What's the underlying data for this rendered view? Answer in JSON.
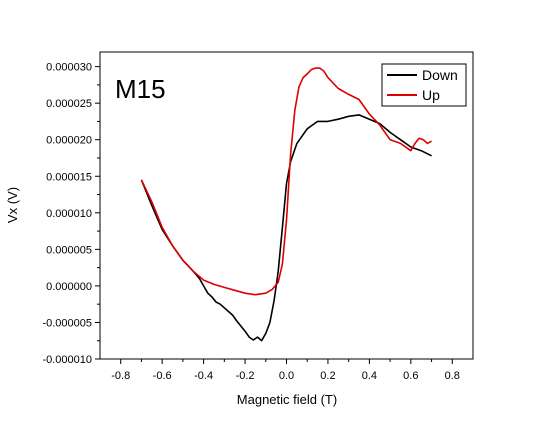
{
  "chart_data": {
    "type": "line",
    "title": "",
    "annotation": "M15",
    "xlabel": "Magnetic field (T)",
    "ylabel": "Vx (V)",
    "xlim": [
      -0.9,
      0.9
    ],
    "ylim": [
      -1e-05,
      3.2e-05
    ],
    "xticks": [
      -0.8,
      -0.6,
      -0.4,
      -0.2,
      0.0,
      0.2,
      0.4,
      0.6,
      0.8
    ],
    "xtick_labels": [
      "-0.8",
      "-0.6",
      "-0.4",
      "-0.2",
      "0.0",
      "0.2",
      "0.4",
      "0.6",
      "0.8"
    ],
    "yticks": [
      -1e-05,
      -5e-06,
      0,
      5e-06,
      1e-05,
      1.5e-05,
      2e-05,
      2.5e-05,
      3e-05
    ],
    "ytick_labels": [
      "-0.000010",
      "-0.000005",
      "0.000000",
      "0.000005",
      "0.000010",
      "0.000015",
      "0.000020",
      "0.000025",
      "0.000030"
    ],
    "grid": false,
    "legend_position": "top-right",
    "series": [
      {
        "name": "Down",
        "color": "#000000",
        "x": [
          -0.7,
          -0.65,
          -0.6,
          -0.55,
          -0.5,
          -0.45,
          -0.42,
          -0.4,
          -0.38,
          -0.36,
          -0.34,
          -0.32,
          -0.3,
          -0.28,
          -0.26,
          -0.24,
          -0.22,
          -0.2,
          -0.18,
          -0.16,
          -0.14,
          -0.12,
          -0.1,
          -0.08,
          -0.06,
          -0.04,
          -0.02,
          0.0,
          0.02,
          0.05,
          0.1,
          0.15,
          0.2,
          0.25,
          0.3,
          0.35,
          0.4,
          0.45,
          0.5,
          0.55,
          0.6,
          0.65,
          0.7
        ],
        "y": [
          1.45e-05,
          1.1e-05,
          7.7e-06,
          5.5e-06,
          3.5e-06,
          2e-06,
          1e-06,
          0.0,
          -1e-06,
          -1.5e-06,
          -2.2e-06,
          -2.5e-06,
          -3e-06,
          -3.5e-06,
          -4e-06,
          -4.8e-06,
          -5.5e-06,
          -6.2e-06,
          -7e-06,
          -7.4e-06,
          -7e-06,
          -7.5e-06,
          -6.5e-06,
          -5e-06,
          -2e-06,
          2e-06,
          8e-06,
          1.4e-05,
          1.7e-05,
          1.95e-05,
          2.15e-05,
          2.25e-05,
          2.25e-05,
          2.28e-05,
          2.32e-05,
          2.34e-05,
          2.28e-05,
          2.22e-05,
          2.1e-05,
          2e-05,
          1.9e-05,
          1.85e-05,
          1.78e-05
        ]
      },
      {
        "name": "Up",
        "color": "#dd0000",
        "x": [
          -0.7,
          -0.65,
          -0.6,
          -0.55,
          -0.5,
          -0.45,
          -0.4,
          -0.35,
          -0.3,
          -0.25,
          -0.2,
          -0.15,
          -0.1,
          -0.07,
          -0.04,
          -0.02,
          0.0,
          0.02,
          0.04,
          0.06,
          0.08,
          0.1,
          0.12,
          0.14,
          0.16,
          0.18,
          0.2,
          0.25,
          0.3,
          0.35,
          0.4,
          0.45,
          0.5,
          0.55,
          0.6,
          0.62,
          0.64,
          0.66,
          0.68,
          0.7
        ],
        "y": [
          1.45e-05,
          1.15e-05,
          8e-06,
          5.5e-06,
          3.5e-06,
          2e-06,
          8e-07,
          2e-07,
          -2e-07,
          -6e-07,
          -1e-06,
          -1.2e-06,
          -1e-06,
          -5e-07,
          5e-07,
          3e-06,
          9e-06,
          1.8e-05,
          2.4e-05,
          2.72e-05,
          2.85e-05,
          2.9e-05,
          2.96e-05,
          2.98e-05,
          2.98e-05,
          2.94e-05,
          2.85e-05,
          2.7e-05,
          2.62e-05,
          2.55e-05,
          2.35e-05,
          2.2e-05,
          2e-05,
          1.95e-05,
          1.85e-05,
          1.95e-05,
          2.02e-05,
          2e-05,
          1.95e-05,
          1.98e-05
        ]
      }
    ]
  }
}
